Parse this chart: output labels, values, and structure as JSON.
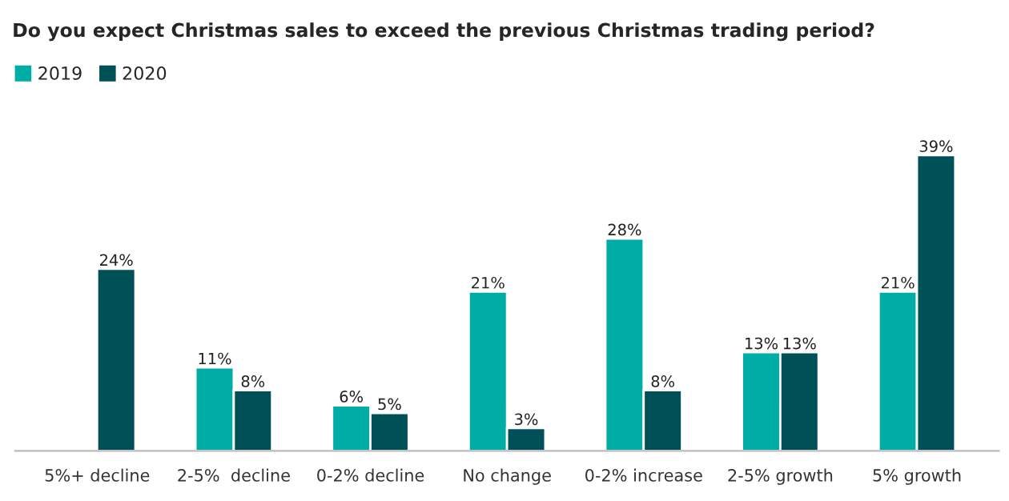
{
  "chart_data": {
    "type": "bar",
    "title": "Do you expect Christmas sales to exceed the previous Christmas trading period?",
    "categories": [
      "5%+ decline",
      "2-5%  decline",
      "0-2% decline",
      "No change",
      "0-2% increase",
      "2-5% growth",
      "5% growth"
    ],
    "series": [
      {
        "name": "2019",
        "color": "#00ada6",
        "values": [
          null,
          11,
          6,
          21,
          28,
          13,
          21
        ],
        "value_labels": [
          null,
          "11%",
          "6%",
          "21%",
          "28%",
          "13%",
          "21%"
        ]
      },
      {
        "name": "2020",
        "color": "#005157",
        "values": [
          24,
          8,
          5,
          3,
          8,
          13,
          39
        ],
        "value_labels": [
          "24%",
          "8%",
          "5%",
          "3%",
          "8%",
          "13%",
          "39%"
        ]
      }
    ],
    "legend": "top left"
  }
}
